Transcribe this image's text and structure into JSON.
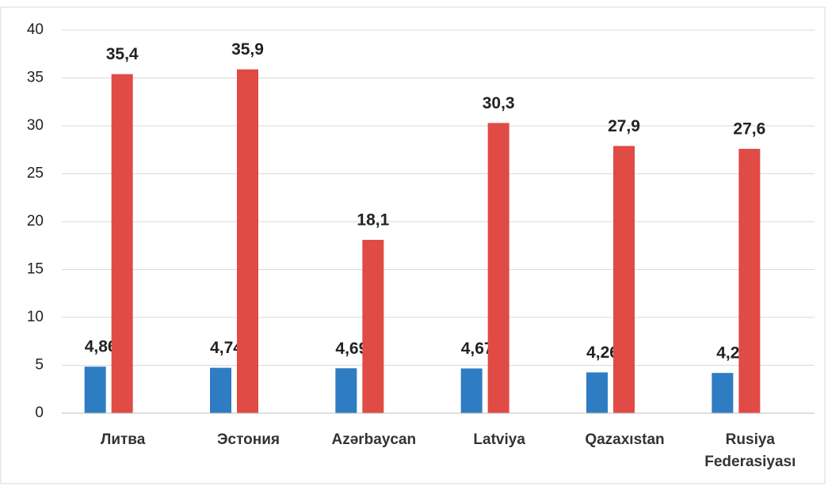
{
  "chart_data": {
    "type": "bar",
    "categories": [
      "Литва",
      "Эстония",
      "Azərbaycan",
      "Latviya",
      "Qazaxıstan",
      "Rusiya Federasiyası"
    ],
    "series": [
      {
        "color": "#2e7dc3",
        "values": [
          4.86,
          4.74,
          4.69,
          4.67,
          4.26,
          4.2
        ],
        "value_labels": [
          "4,86",
          "4,74",
          "4,69",
          "4,67",
          "4,26",
          "4,2"
        ]
      },
      {
        "color": "#e04b45",
        "values": [
          35.4,
          35.9,
          18.1,
          30.3,
          27.9,
          27.6
        ],
        "value_labels": [
          "35,4",
          "35,9",
          "18,1",
          "30,3",
          "27,9",
          "27,6"
        ]
      }
    ],
    "ylim": [
      0,
      40
    ],
    "yticks": [
      0,
      5,
      10,
      15,
      20,
      25,
      30,
      35,
      40
    ],
    "grid": true
  }
}
